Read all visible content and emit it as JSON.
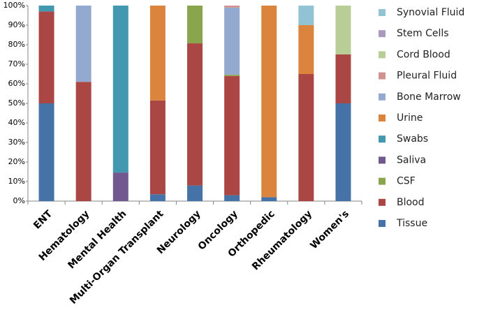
{
  "chart_data": {
    "type": "stacked_bar",
    "categories": [
      "ENT",
      "Hematology",
      "Mental Health",
      "Multi-Organ Transplant",
      "Neurology",
      "Oncology",
      "Orthopedic",
      "Rheumatology",
      "Women's"
    ],
    "series": [
      {
        "name": "Tissue",
        "color": "#4572a7",
        "values": [
          50,
          0,
          0,
          3.5,
          8,
          3,
          2,
          0,
          50
        ]
      },
      {
        "name": "Blood",
        "color": "#aa4643",
        "values": [
          47,
          61,
          0,
          48,
          72.7,
          61,
          0,
          65,
          25
        ]
      },
      {
        "name": "CSF",
        "color": "#89a54e",
        "values": [
          0,
          0,
          0,
          0,
          19.3,
          0.7,
          0,
          0,
          0
        ]
      },
      {
        "name": "Saliva",
        "color": "#71588f",
        "values": [
          0,
          0,
          14.6,
          0,
          0,
          0,
          0,
          0,
          0
        ]
      },
      {
        "name": "Swabs",
        "color": "#4198af",
        "values": [
          3,
          0,
          85.4,
          0,
          0,
          0,
          0,
          0,
          0
        ]
      },
      {
        "name": "Urine",
        "color": "#db843d",
        "values": [
          0,
          0,
          0,
          48.5,
          0,
          0,
          98,
          25,
          0
        ]
      },
      {
        "name": "Bone Marrow",
        "color": "#93a9cf",
        "values": [
          0,
          39,
          0,
          0,
          0,
          34.3,
          0,
          0,
          0
        ]
      },
      {
        "name": "Pleural Fluid",
        "color": "#d19392",
        "values": [
          0,
          0,
          0,
          0,
          0,
          1,
          0,
          0,
          0
        ]
      },
      {
        "name": "Cord Blood",
        "color": "#b9cd96",
        "values": [
          0,
          0,
          0,
          0,
          0,
          0,
          0,
          0,
          25
        ]
      },
      {
        "name": "Stem Cells",
        "color": "#a99bbd",
        "values": [
          0,
          0,
          0,
          0,
          0,
          0,
          0,
          0,
          0
        ]
      },
      {
        "name": "Synovial Fluid",
        "color": "#92c3d4",
        "values": [
          0,
          0,
          0,
          0,
          0,
          0,
          0,
          10,
          0
        ]
      }
    ],
    "ylim": [
      0,
      100
    ],
    "yticks": [
      {
        "value": 0,
        "label": "0%"
      },
      {
        "value": 10,
        "label": "10%"
      },
      {
        "value": 20,
        "label": "20%"
      },
      {
        "value": 30,
        "label": "30%"
      },
      {
        "value": 40,
        "label": "40%"
      },
      {
        "value": 50,
        "label": "50%"
      },
      {
        "value": 60,
        "label": "60%"
      },
      {
        "value": 70,
        "label": "70%"
      },
      {
        "value": 80,
        "label": "80%"
      },
      {
        "value": 90,
        "label": "90%"
      },
      {
        "value": 100,
        "label": "100%"
      }
    ],
    "grid": false,
    "legend": "right"
  }
}
